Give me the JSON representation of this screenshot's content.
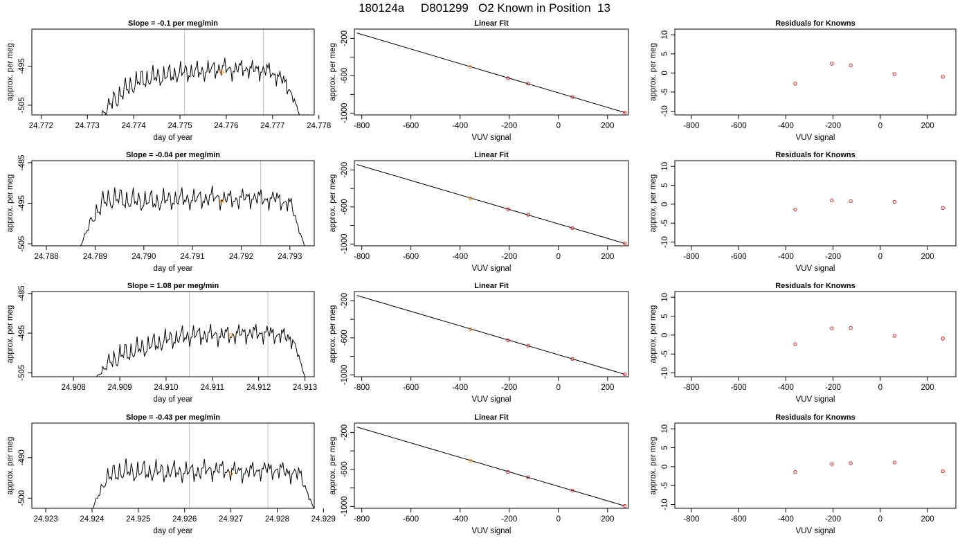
{
  "main_title": "180124a     D801299   O2 Known in Position  13",
  "colors": {
    "trace": "#000000",
    "vline": "#bebebe",
    "highlight": "#ff8c00",
    "residual": "#cd2626",
    "frame": "#000000"
  },
  "chart_data": [
    {
      "type": "line",
      "panel": "timeseries-1",
      "title": "Slope =  -0.1  per meg/min",
      "xlabel": "day of year",
      "ylabel": "approx. per meg",
      "xlim": [
        24.7718,
        24.7779
      ],
      "ylim": [
        -507.5,
        -485.5
      ],
      "xticks": [
        24.772,
        24.773,
        24.774,
        24.775,
        24.776,
        24.777,
        24.778
      ],
      "xtick_labels": [
        "24.772",
        "24.773",
        "24.774",
        "24.775",
        "24.776",
        "24.777",
        "24.778"
      ],
      "yticks": [
        -505,
        -495
      ],
      "ytick_labels": [
        "-505",
        "-495"
      ],
      "vlines": [
        24.7751,
        24.7768
      ],
      "trace_start": 24.7732,
      "trace_end": 24.7776,
      "trace_levels": [
        -509,
        -505.5,
        -502.5,
        -500,
        -498.5,
        -498,
        -497.5,
        -497,
        -496.5,
        -496.5,
        -496,
        -495.5,
        -496,
        -495.5,
        -496,
        -496,
        -497.5,
        -500.5,
        -508
      ],
      "highlight": {
        "x": 24.7759,
        "y": -496.5
      }
    },
    {
      "type": "line",
      "panel": "timeseries-2",
      "title": "Slope =  -0.04  per meg/min",
      "xlabel": "day of year",
      "ylabel": "approx. per meg",
      "xlim": [
        24.7877,
        24.7935
      ],
      "ylim": [
        -505.5,
        -484.5
      ],
      "xticks": [
        24.788,
        24.789,
        24.79,
        24.791,
        24.792,
        24.793
      ],
      "xtick_labels": [
        "24.788",
        "24.789",
        "24.790",
        "24.791",
        "24.792",
        "24.793"
      ],
      "yticks": [
        -505,
        -495,
        -485
      ],
      "ytick_labels": [
        "-505",
        "-495",
        "-485"
      ],
      "vlines": [
        24.7907,
        24.7924
      ],
      "trace_start": 24.7887,
      "trace_end": 24.7933,
      "trace_levels": [
        -505.5,
        -498,
        -494,
        -494,
        -494.5,
        -494.5,
        -494.5,
        -494,
        -494,
        -494,
        -493.5,
        -494,
        -494,
        -493.5,
        -494,
        -494,
        -495.5,
        -505.5
      ],
      "highlight": {
        "x": 24.7916,
        "y": -494.5
      }
    },
    {
      "type": "line",
      "panel": "timeseries-3",
      "title": "Slope =  1.08  per meg/min",
      "xlabel": "day of year",
      "ylabel": "approx. per meg",
      "xlim": [
        24.9071,
        24.9132
      ],
      "ylim": [
        -506,
        -484.5
      ],
      "xticks": [
        24.908,
        24.909,
        24.91,
        24.911,
        24.912,
        24.913
      ],
      "xtick_labels": [
        "24.908",
        "24.909",
        "24.910",
        "24.911",
        "24.912",
        "24.913"
      ],
      "yticks": [
        -505,
        -495,
        -485
      ],
      "ytick_labels": [
        "-505",
        "-495",
        "-485"
      ],
      "vlines": [
        24.9105,
        24.9122
      ],
      "trace_start": 24.9085,
      "trace_end": 24.913,
      "trace_levels": [
        -506,
        -502.5,
        -500.5,
        -499.5,
        -498.5,
        -497.5,
        -496.5,
        -496,
        -495.5,
        -495.5,
        -495.5,
        -495.5,
        -495,
        -495,
        -495,
        -495.5,
        -496.5,
        -506
      ],
      "highlight": {
        "x": 24.9114,
        "y": -495.5
      }
    },
    {
      "type": "line",
      "panel": "timeseries-4",
      "title": "Slope =  -0.43  per meg/min",
      "xlabel": "day of year",
      "ylabel": "approx. per meg",
      "xlim": [
        24.9227,
        24.9288
      ],
      "ylim": [
        -502.5,
        -481.5
      ],
      "xticks": [
        24.923,
        24.924,
        24.925,
        24.926,
        24.927,
        24.928,
        24.929
      ],
      "xtick_labels": [
        "24.923",
        "24.924",
        "24.925",
        "24.926",
        "24.927",
        "24.928",
        "24.929"
      ],
      "yticks": [
        -500,
        -490
      ],
      "ytick_labels": [
        "-500",
        "-490"
      ],
      "vlines": [
        24.9261,
        24.9278
      ],
      "trace_start": 24.924,
      "trace_end": 24.9288,
      "trace_levels": [
        -503,
        -495.5,
        -493.5,
        -493.5,
        -493.5,
        -493.5,
        -493.5,
        -493.5,
        -493.5,
        -493,
        -493,
        -493.5,
        -493.5,
        -493,
        -493,
        -493.5,
        -494.5,
        -503
      ],
      "highlight": {
        "x": 24.927,
        "y": -494
      }
    },
    {
      "type": "scatter",
      "panel": "linear-fit-1",
      "title": "Linear Fit",
      "xlabel": "VUV signal",
      "ylabel": "approx. per meg",
      "xlim": [
        -830,
        285
      ],
      "ylim": [
        -1020,
        -100
      ],
      "xticks": [
        -800,
        -600,
        -400,
        -200,
        0,
        200
      ],
      "xtick_labels": [
        "-800",
        "-600",
        "-400",
        "-200",
        "0",
        "200"
      ],
      "yticks": [
        -200,
        -400,
        -600,
        -800,
        -1000
      ],
      "ytick_labels": [
        "-200",
        "",
        "-600",
        "",
        "-1000"
      ],
      "points": [
        [
          -358,
          -507
        ],
        [
          -205,
          -626
        ],
        [
          -123,
          -684
        ],
        [
          57,
          -828
        ],
        [
          270,
          -994
        ]
      ],
      "highlight_index": 0,
      "fit_line": [
        [
          -820,
          -142
        ],
        [
          270,
          -994
        ]
      ]
    },
    {
      "type": "scatter",
      "panel": "linear-fit-2",
      "title": "Linear Fit",
      "xlabel": "VUV signal",
      "ylabel": "approx. per meg",
      "xlim": [
        -830,
        285
      ],
      "ylim": [
        -1020,
        -100
      ],
      "xticks": [
        -800,
        -600,
        -400,
        -200,
        0,
        200
      ],
      "xtick_labels": [
        "-800",
        "-600",
        "-400",
        "-200",
        "0",
        "200"
      ],
      "yticks": [
        -200,
        -400,
        -600,
        -800,
        -1000
      ],
      "ytick_labels": [
        "-200",
        "",
        "-600",
        "",
        "-1000"
      ],
      "points": [
        [
          -358,
          -507
        ],
        [
          -205,
          -626
        ],
        [
          -123,
          -684
        ],
        [
          57,
          -828
        ],
        [
          270,
          -994
        ]
      ],
      "highlight_index": 0,
      "fit_line": [
        [
          -820,
          -142
        ],
        [
          270,
          -994
        ]
      ]
    },
    {
      "type": "scatter",
      "panel": "linear-fit-3",
      "title": "Linear Fit",
      "xlabel": "VUV signal",
      "ylabel": "approx. per meg",
      "xlim": [
        -830,
        285
      ],
      "ylim": [
        -1020,
        -100
      ],
      "xticks": [
        -800,
        -600,
        -400,
        -200,
        0,
        200
      ],
      "xtick_labels": [
        "-800",
        "-600",
        "-400",
        "-200",
        "0",
        "200"
      ],
      "yticks": [
        -200,
        -400,
        -600,
        -800,
        -1000
      ],
      "ytick_labels": [
        "-200",
        "",
        "-600",
        "",
        "-1000"
      ],
      "points": [
        [
          -358,
          -507
        ],
        [
          -205,
          -626
        ],
        [
          -123,
          -684
        ],
        [
          57,
          -828
        ],
        [
          270,
          -994
        ]
      ],
      "highlight_index": 0,
      "fit_line": [
        [
          -820,
          -142
        ],
        [
          270,
          -994
        ]
      ]
    },
    {
      "type": "scatter",
      "panel": "linear-fit-4",
      "title": "Linear Fit",
      "xlabel": "VUV signal",
      "ylabel": "approx. per meg",
      "xlim": [
        -830,
        285
      ],
      "ylim": [
        -1020,
        -100
      ],
      "xticks": [
        -800,
        -600,
        -400,
        -200,
        0,
        200
      ],
      "xtick_labels": [
        "-800",
        "-600",
        "-400",
        "-200",
        "0",
        "200"
      ],
      "yticks": [
        -200,
        -400,
        -600,
        -800,
        -1000
      ],
      "ytick_labels": [
        "-200",
        "",
        "-600",
        "",
        "-1000"
      ],
      "points": [
        [
          -358,
          -507
        ],
        [
          -205,
          -626
        ],
        [
          -123,
          -684
        ],
        [
          57,
          -828
        ],
        [
          270,
          -994
        ]
      ],
      "highlight_index": 0,
      "fit_line": [
        [
          -820,
          -142
        ],
        [
          270,
          -994
        ]
      ]
    },
    {
      "type": "scatter",
      "panel": "residuals-1",
      "title": "Residuals for Knowns",
      "xlabel": "VUV signal",
      "ylabel": "approx. per meg",
      "xlim": [
        -870,
        320
      ],
      "ylim": [
        -11,
        11.5
      ],
      "xticks": [
        -800,
        -600,
        -400,
        -200,
        0,
        200
      ],
      "xtick_labels": [
        "-800",
        "-600",
        "-400",
        "-200",
        "0",
        "200"
      ],
      "yticks": [
        -10,
        -5,
        0,
        5,
        10
      ],
      "ytick_labels": [
        "-10",
        "-5",
        "0",
        "5",
        "10"
      ],
      "points": [
        [
          -360,
          -2.8
        ],
        [
          -205,
          2.4
        ],
        [
          -125,
          2.0
        ],
        [
          60,
          -0.3
        ],
        [
          265,
          -1.0
        ]
      ]
    },
    {
      "type": "scatter",
      "panel": "residuals-2",
      "title": "Residuals for Knowns",
      "xlabel": "VUV signal",
      "ylabel": "approx. per meg",
      "xlim": [
        -870,
        320
      ],
      "ylim": [
        -11,
        11.5
      ],
      "xticks": [
        -800,
        -600,
        -400,
        -200,
        0,
        200
      ],
      "xtick_labels": [
        "-800",
        "-600",
        "-400",
        "-200",
        "0",
        "200"
      ],
      "yticks": [
        -10,
        -5,
        0,
        5,
        10
      ],
      "ytick_labels": [
        "-10",
        "-5",
        "0",
        "5",
        "10"
      ],
      "points": [
        [
          -360,
          -1.4
        ],
        [
          -205,
          1.0
        ],
        [
          -125,
          0.8
        ],
        [
          60,
          0.6
        ],
        [
          265,
          -1.0
        ]
      ]
    },
    {
      "type": "scatter",
      "panel": "residuals-3",
      "title": "Residuals for Knowns",
      "xlabel": "VUV signal",
      "ylabel": "approx. per meg",
      "xlim": [
        -870,
        320
      ],
      "ylim": [
        -11,
        11.5
      ],
      "xticks": [
        -800,
        -600,
        -400,
        -200,
        0,
        200
      ],
      "xtick_labels": [
        "-800",
        "-600",
        "-400",
        "-200",
        "0",
        "200"
      ],
      "yticks": [
        -10,
        -5,
        0,
        5,
        10
      ],
      "ytick_labels": [
        "-10",
        "-5",
        "0",
        "5",
        "10"
      ],
      "points": [
        [
          -360,
          -2.4
        ],
        [
          -205,
          1.8
        ],
        [
          -125,
          1.9
        ],
        [
          60,
          -0.2
        ],
        [
          265,
          -0.9
        ]
      ]
    },
    {
      "type": "scatter",
      "panel": "residuals-4",
      "title": "Residuals for Knowns",
      "xlabel": "VUV signal",
      "ylabel": "approx. per meg",
      "xlim": [
        -870,
        320
      ],
      "ylim": [
        -11,
        11.5
      ],
      "xticks": [
        -800,
        -600,
        -400,
        -200,
        0,
        200
      ],
      "xtick_labels": [
        "-800",
        "-600",
        "-400",
        "-200",
        "0",
        "200"
      ],
      "yticks": [
        -10,
        -5,
        0,
        5,
        10
      ],
      "ytick_labels": [
        "-10",
        "-5",
        "0",
        "5",
        "10"
      ],
      "points": [
        [
          -360,
          -1.4
        ],
        [
          -205,
          0.7
        ],
        [
          -125,
          0.9
        ],
        [
          60,
          1.1
        ],
        [
          265,
          -1.2
        ]
      ]
    }
  ]
}
